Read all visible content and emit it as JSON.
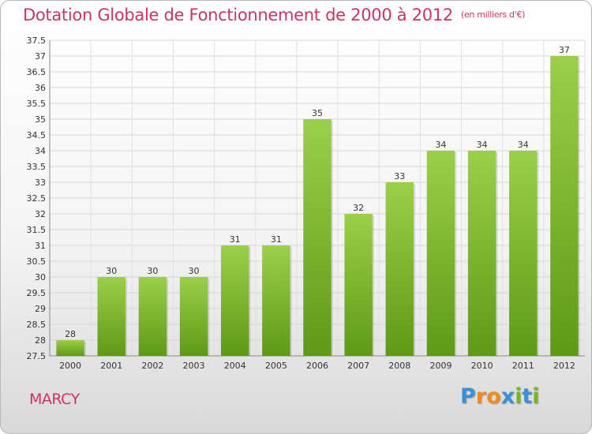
{
  "chart_data": {
    "type": "bar",
    "title": "Dotation Globale de Fonctionnement de 2000 à 2012",
    "subtitle": "(en milliers d'€)",
    "categories": [
      "2000",
      "2001",
      "2002",
      "2003",
      "2004",
      "2005",
      "2006",
      "2007",
      "2008",
      "2009",
      "2010",
      "2011",
      "2012"
    ],
    "values": [
      28,
      30,
      30,
      30,
      31,
      31,
      35,
      32,
      33,
      34,
      34,
      34,
      37
    ],
    "value_labels": [
      "28",
      "30",
      "30",
      "30",
      "31",
      "31",
      "35",
      "32",
      "33",
      "34",
      "34",
      "34",
      "37"
    ],
    "ylim": [
      27.5,
      37.5
    ],
    "yticks": [
      "27.5",
      "28",
      "28.5",
      "29",
      "29.5",
      "30",
      "30.5",
      "31",
      "31.5",
      "32",
      "32.5",
      "33",
      "33.5",
      "34",
      "34.5",
      "35",
      "35.5",
      "36",
      "36.5",
      "37",
      "37.5"
    ],
    "xlabel": "",
    "ylabel": "",
    "grid": true,
    "legend": "none",
    "bar_color_top": "#9ccf4a",
    "bar_color_bottom": "#5e9a16"
  },
  "footer": {
    "town": "MARCY",
    "logo_letters": [
      "P",
      "r",
      "o",
      "x",
      "i",
      "t",
      "i"
    ],
    "logo_colors": [
      "#3a8fd6",
      "#f08c1e",
      "#f08c1e",
      "#3a8fd6",
      "#7ab51d",
      "#3a8fd6",
      "#7ab51d"
    ]
  },
  "theme": {
    "accent": "#cc3366"
  }
}
